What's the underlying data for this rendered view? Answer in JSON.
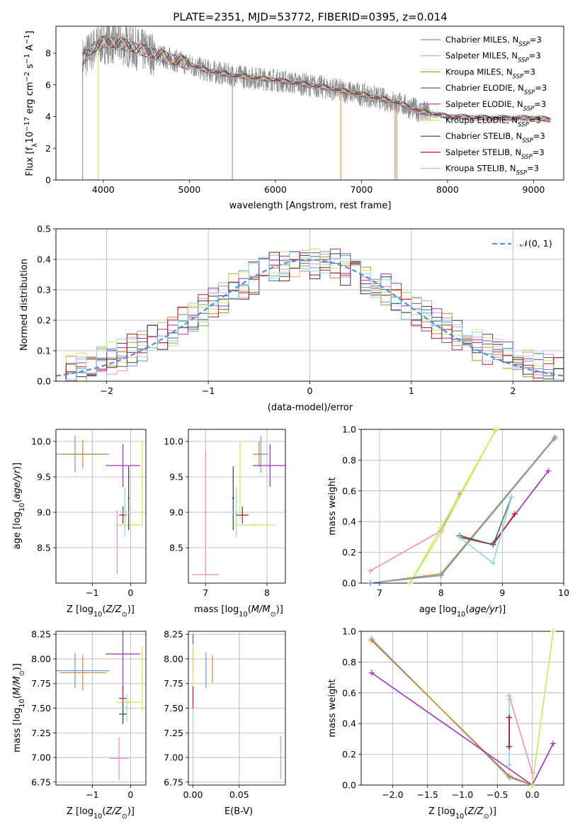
{
  "figure_title": "PLATE=2351, MJD=53772, FIBERID=0395, z=0.014",
  "colors": {
    "Chabrier MILES": "#6f9bd6",
    "Salpeter MILES": "#e88fc4",
    "Kroupa MILES": "#cc8a2e",
    "Chabrier ELODIE": "#4f6f6a",
    "Salpeter ELODIE": "#9b35b8",
    "Kroupa ELODIE": "#c8e860",
    "Chabrier STELIB": "#3a3a3a",
    "Salpeter STELIB": "#b01828",
    "Kroupa STELIB": "#8fd6de",
    "data": "#8a8a8a",
    "gauss": "#5b8fd9"
  },
  "chart_data": [
    {
      "id": "spectrum",
      "type": "line",
      "xlabel": "wavelength [Angstrom, rest frame]",
      "ylabel": "Flux [f_λ10^-17 erg cm^-2 s^-1 A^-1]",
      "xlim": [
        3450,
        9350
      ],
      "ylim": [
        0,
        9.7
      ],
      "xticks": [
        4000,
        5000,
        6000,
        7000,
        8000,
        9000
      ],
      "yticks": [
        0,
        2,
        4,
        6,
        8
      ],
      "grid": false,
      "legend": "top-right",
      "legend_entries": [
        {
          "label": "Chabrier MILES, N",
          "sub": "SSP",
          "suffix": "=3"
        },
        {
          "label": "Salpeter MILES, N",
          "sub": "SSP",
          "suffix": "=3"
        },
        {
          "label": "Kroupa MILES, N",
          "sub": "SSP",
          "suffix": "=3"
        },
        {
          "label": "Chabrier ELODIE, N",
          "sub": "SSP",
          "suffix": "=3"
        },
        {
          "label": "Salpeter ELODIE, N",
          "sub": "SSP",
          "suffix": "=3"
        },
        {
          "label": "Kroupa ELODIE, N",
          "sub": "SSP",
          "suffix": "=3"
        },
        {
          "label": "Chabrier STELIB, N",
          "sub": "SSP",
          "suffix": "=3"
        },
        {
          "label": "Salpeter STELIB, N",
          "sub": "SSP",
          "suffix": "=3"
        },
        {
          "label": "Kroupa STELIB, N",
          "sub": "SSP",
          "suffix": "=3"
        }
      ],
      "continuum": [
        [
          3760,
          7.6
        ],
        [
          3900,
          8.4
        ],
        [
          4000,
          8.7
        ],
        [
          4200,
          8.6
        ],
        [
          4500,
          8.1
        ],
        [
          4800,
          7.6
        ],
        [
          5000,
          7.3
        ],
        [
          5200,
          6.9
        ],
        [
          5500,
          6.6
        ],
        [
          6000,
          6.3
        ],
        [
          6500,
          5.9
        ],
        [
          7000,
          5.4
        ],
        [
          7400,
          4.9
        ],
        [
          7700,
          4.3
        ],
        [
          8000,
          4.0
        ],
        [
          8500,
          3.9
        ],
        [
          9000,
          3.9
        ],
        [
          9200,
          3.8
        ]
      ]
    },
    {
      "id": "residuals",
      "type": "histogram",
      "xlabel": "(data-model)/error",
      "ylabel": "Normed distribution",
      "xlim": [
        -2.5,
        2.5
      ],
      "ylim": [
        0,
        0.5
      ],
      "xticks": [
        -2,
        -1,
        0,
        1,
        2
      ],
      "yticks": [
        0.0,
        0.1,
        0.2,
        0.3,
        0.4,
        0.5
      ],
      "grid": true,
      "legend": "top-right",
      "legend_label": "𝒩(0, 1)",
      "bin_width": 0.1
    },
    {
      "id": "age_vs_Z",
      "type": "scatter",
      "xlabel": "Z [log₁₀(Z/Z⊙)]",
      "ylabel": "age  [log₁₀(age/yr)]",
      "xlim": [
        -1.95,
        0.4
      ],
      "ylim": [
        8.0,
        10.17
      ],
      "xticks": [
        -1,
        0
      ],
      "yticks": [
        8.5,
        9.0,
        9.5,
        10.0
      ],
      "grid": true,
      "points": [
        {
          "model": "Chabrier MILES",
          "x": -1.45,
          "y": 9.82,
          "xerr": 0.9,
          "yerr": 0.26
        },
        {
          "model": "Kroupa MILES",
          "x": -1.25,
          "y": 9.82,
          "xerr": 0.6,
          "yerr": 0.2
        },
        {
          "model": "Salpeter ELODIE",
          "x": -0.2,
          "y": 9.66,
          "xerr": 0.45,
          "yerr": 0.3
        },
        {
          "model": "Kroupa ELODIE",
          "x": -0.05,
          "y": 8.82,
          "xerr": 0.32,
          "yerr": 0.02
        },
        {
          "model": "Kroupa ELODIE",
          "x": 0.3,
          "y": 9.4,
          "xerr": 0.02,
          "yerr": 0.6
        },
        {
          "model": "Chabrier STELIB",
          "x": -0.05,
          "y": 9.2,
          "xerr": 0.02,
          "yerr": 0.45
        },
        {
          "model": "Salpeter STELIB",
          "x": -0.2,
          "y": 8.96,
          "xerr": 0.1,
          "yerr": 0.12
        },
        {
          "model": "Kroupa STELIB",
          "x": -0.15,
          "y": 9.0,
          "xerr": 0.12,
          "yerr": 0.35
        },
        {
          "model": "Salpeter MILES",
          "x": -0.35,
          "y": 8.58,
          "xerr": 0.02,
          "yerr": 0.45
        }
      ]
    },
    {
      "id": "age_vs_mass",
      "type": "scatter",
      "xlabel": "mass [log₁₀(M/M⊙)]",
      "ylabel": "",
      "xlim": [
        6.72,
        8.3
      ],
      "ylim": [
        8.0,
        10.17
      ],
      "xticks": [
        7,
        8
      ],
      "yticks": [
        8.5,
        9.0,
        9.5,
        10.0
      ],
      "grid": true,
      "points": [
        {
          "model": "Salpeter MILES",
          "x": 7.0,
          "y": 8.12,
          "xerr": 0.22,
          "yerr": 0.02
        },
        {
          "model": "Salpeter MILES",
          "x": 7.0,
          "y": 9.0,
          "xerr": 0.02,
          "yerr": 0.88
        },
        {
          "model": "Chabrier STELIB",
          "x": 7.45,
          "y": 9.2,
          "xerr": 0.02,
          "yerr": 0.45
        },
        {
          "model": "Kroupa STELIB",
          "x": 7.5,
          "y": 9.0,
          "xerr": 0.12,
          "yerr": 0.35
        },
        {
          "model": "Kroupa ELODIE",
          "x": 7.56,
          "y": 9.45,
          "xerr": 0.02,
          "yerr": 0.55
        },
        {
          "model": "Salpeter STELIB",
          "x": 7.6,
          "y": 8.96,
          "xerr": 0.1,
          "yerr": 0.12
        },
        {
          "model": "Kroupa ELODIE",
          "x": 7.8,
          "y": 8.82,
          "xerr": 0.35,
          "yerr": 0.02
        },
        {
          "model": "Chabrier MILES",
          "x": 7.9,
          "y": 9.82,
          "xerr": 0.12,
          "yerr": 0.26
        },
        {
          "model": "Kroupa MILES",
          "x": 7.87,
          "y": 9.82,
          "xerr": 0.1,
          "yerr": 0.18
        },
        {
          "model": "Salpeter ELODIE",
          "x": 8.05,
          "y": 9.66,
          "xerr": 0.28,
          "yerr": 0.3
        }
      ]
    },
    {
      "id": "weight_vs_age",
      "type": "line",
      "xlabel": "age  [log₁₀(age/yr)]",
      "ylabel": "mass weight",
      "xlim": [
        6.7,
        10.0
      ],
      "ylim": [
        0,
        1.0
      ],
      "xticks": [
        7,
        8,
        9,
        10
      ],
      "yticks": [
        0.0,
        0.2,
        0.4,
        0.6,
        0.8,
        1.0
      ],
      "grid": true,
      "series": [
        {
          "model": "Salpeter MILES",
          "x": [
            6.85,
            8.0,
            8.3
          ],
          "y": [
            0.08,
            0.34,
            0.58
          ]
        },
        {
          "model": "Kroupa ELODIE",
          "x": [
            7.5,
            8.0,
            8.9
          ],
          "y": [
            0.0,
            0.36,
            1.0
          ]
        },
        {
          "model": "Kroupa ELODIE",
          "x": [
            7.5,
            8.0,
            8.88
          ],
          "y": [
            0.0,
            0.33,
            0.99
          ]
        },
        {
          "model": "Kroupa MILES",
          "x": [
            6.85,
            8.0,
            9.86
          ],
          "y": [
            0.0,
            0.06,
            0.95
          ]
        },
        {
          "model": "Chabrier MILES",
          "x": [
            6.85,
            8.0,
            9.85
          ],
          "y": [
            0.0,
            0.05,
            0.94
          ]
        },
        {
          "model": "Salpeter ELODIE",
          "x": [
            8.85,
            9.75
          ],
          "y": [
            0.26,
            0.73
          ]
        },
        {
          "model": "Salpeter STELIB",
          "x": [
            8.3,
            8.85,
            9.2
          ],
          "y": [
            0.3,
            0.25,
            0.45
          ]
        },
        {
          "model": "Chabrier ELODIE",
          "x": [
            8.3,
            8.85,
            9.15
          ],
          "y": [
            0.31,
            0.25,
            0.56
          ]
        },
        {
          "model": "Kroupa STELIB",
          "x": [
            8.3,
            8.85,
            9.15
          ],
          "y": [
            0.3,
            0.13,
            0.56
          ]
        }
      ]
    },
    {
      "id": "mass_vs_Z",
      "type": "scatter",
      "xlabel": "Z [log₁₀(Z/Z⊙)]",
      "ylabel": "mass [log₁₀(M/M⊙)]",
      "xlim": [
        -1.95,
        0.4
      ],
      "ylim": [
        6.72,
        8.28
      ],
      "xticks": [
        -1,
        0
      ],
      "yticks": [
        6.75,
        7.0,
        7.25,
        7.5,
        7.75,
        8.0,
        8.25
      ],
      "grid": true,
      "points": [
        {
          "model": "Chabrier MILES",
          "x": -1.45,
          "y": 7.88,
          "xerr": 0.9,
          "yerr": 0.18
        },
        {
          "model": "Kroupa MILES",
          "x": -1.25,
          "y": 7.86,
          "xerr": 0.6,
          "yerr": 0.18
        },
        {
          "model": "Salpeter ELODIE",
          "x": -0.2,
          "y": 8.05,
          "xerr": 0.45,
          "yerr": 0.38
        },
        {
          "model": "Kroupa ELODIE",
          "x": -0.05,
          "y": 7.56,
          "xerr": 0.32,
          "yerr": 0.02
        },
        {
          "model": "Kroupa ELODIE",
          "x": 0.3,
          "y": 7.8,
          "xerr": 0.02,
          "yerr": 0.33
        },
        {
          "model": "Salpeter STELIB",
          "x": -0.2,
          "y": 7.6,
          "xerr": 0.1,
          "yerr": 0.12
        },
        {
          "model": "Chabrier STELIB",
          "x": -0.2,
          "y": 7.44,
          "xerr": 0.1,
          "yerr": 0.1
        },
        {
          "model": "Kroupa STELIB",
          "x": -0.1,
          "y": 7.5,
          "xerr": 0.12,
          "yerr": 0.14
        },
        {
          "model": "Salpeter MILES",
          "x": -0.3,
          "y": 6.99,
          "xerr": 0.25,
          "yerr": 0.22
        }
      ]
    },
    {
      "id": "mass_vs_EBV",
      "type": "scatter",
      "xlabel": "E(B-V)",
      "ylabel": "",
      "xlim": [
        -0.005,
        0.1
      ],
      "ylim": [
        6.72,
        8.28
      ],
      "xticks": [
        0.0,
        0.05
      ],
      "yticks": [
        6.75,
        7.0,
        7.25,
        7.5,
        7.75,
        8.0,
        8.25
      ],
      "grid": true,
      "points": [
        {
          "model": "Salpeter ELODIE",
          "x": 0.0,
          "y": 8.05,
          "xerr": 0.0,
          "yerr": 0.2
        },
        {
          "model": "Kroupa ELODIE",
          "x": 0.0,
          "y": 7.8,
          "xerr": 0.0,
          "yerr": 0.35
        },
        {
          "model": "Salpeter STELIB",
          "x": 0.0,
          "y": 7.6,
          "xerr": 0.0,
          "yerr": 0.12
        },
        {
          "model": "Kroupa STELIB",
          "x": 0.0,
          "y": 7.4,
          "xerr": 0.0,
          "yerr": 0.1
        },
        {
          "model": "Chabrier MILES",
          "x": 0.014,
          "y": 7.88,
          "xerr": 0.0,
          "yerr": 0.18
        },
        {
          "model": "Kroupa MILES",
          "x": 0.021,
          "y": 7.9,
          "xerr": 0.0,
          "yerr": 0.14
        },
        {
          "model": "Salpeter MILES",
          "x": 0.095,
          "y": 7.0,
          "xerr": 0.0,
          "yerr": 0.22
        }
      ]
    },
    {
      "id": "weight_vs_Z",
      "type": "line",
      "xlabel": "Z [log₁₀(Z/Z⊙)]",
      "ylabel": "mass weight",
      "xlim": [
        -2.45,
        0.45
      ],
      "ylim": [
        0,
        1.0
      ],
      "xticks": [
        -2.0,
        -1.5,
        -1.0,
        -0.5,
        0.0
      ],
      "yticks": [
        0.0,
        0.2,
        0.4,
        0.6,
        0.8,
        1.0
      ],
      "grid": true,
      "series": [
        {
          "model": "Chabrier MILES",
          "x": [
            -2.3,
            -0.33,
            0.0
          ],
          "y": [
            0.95,
            0.05,
            0.0
          ]
        },
        {
          "model": "Kroupa MILES",
          "x": [
            -2.3,
            -0.33,
            0.0
          ],
          "y": [
            0.94,
            0.06,
            0.0
          ]
        },
        {
          "model": "Salpeter ELODIE",
          "x": [
            -2.3,
            0.0,
            0.3
          ],
          "y": [
            0.73,
            0.0,
            0.27
          ]
        },
        {
          "model": "Salpeter MILES",
          "x": [
            -0.33,
            0.0
          ],
          "y": [
            0.58,
            0.08
          ]
        },
        {
          "model": "Kroupa ELODIE",
          "x": [
            0.0,
            0.3
          ],
          "y": [
            0.0,
            1.0
          ]
        },
        {
          "model": "Kroupa STELIB",
          "x": [
            -0.33,
            -0.33
          ],
          "y": [
            0.13,
            0.56
          ]
        },
        {
          "model": "Chabrier STELIB",
          "x": [
            -0.33,
            -0.33
          ],
          "y": [
            0.25,
            0.44
          ]
        },
        {
          "model": "Salpeter STELIB",
          "x": [
            -0.33,
            -0.33
          ],
          "y": [
            0.25,
            0.44
          ]
        }
      ]
    }
  ]
}
